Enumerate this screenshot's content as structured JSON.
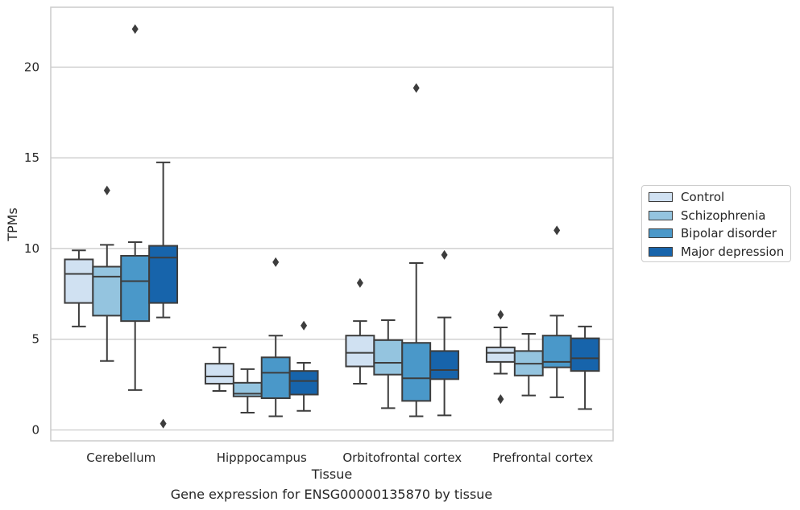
{
  "caption": "Gene expression for ENSG00000135870 by tissue",
  "chart_data": {
    "type": "box",
    "xlabel": "Tissue",
    "ylabel": "TPMs",
    "ylim": [
      -0.6,
      23.3
    ],
    "yticks": [
      0,
      5,
      10,
      15,
      20
    ],
    "grid": "horizontal",
    "legend_position": "right-center",
    "categories": [
      "Cerebellum",
      "Hipppocampus",
      "Orbitofrontal cortex",
      "Prefrontal cortex"
    ],
    "series": [
      {
        "name": "Control",
        "color": "#d0e1f2",
        "boxes": [
          {
            "whislo": 5.7,
            "q1": 7.0,
            "med": 8.6,
            "q3": 9.4,
            "whishi": 9.9,
            "fliers": []
          },
          {
            "whislo": 2.15,
            "q1": 2.55,
            "med": 2.95,
            "q3": 3.65,
            "whishi": 4.55,
            "fliers": []
          },
          {
            "whislo": 2.55,
            "q1": 3.5,
            "med": 4.25,
            "q3": 5.2,
            "whishi": 6.0,
            "fliers": [
              8.1
            ]
          },
          {
            "whislo": 3.1,
            "q1": 3.75,
            "med": 4.25,
            "q3": 4.55,
            "whishi": 5.65,
            "fliers": [
              6.35,
              1.7
            ]
          }
        ]
      },
      {
        "name": "Schizophrenia",
        "color": "#94c4df",
        "boxes": [
          {
            "whislo": 3.8,
            "q1": 6.3,
            "med": 8.45,
            "q3": 9.0,
            "whishi": 10.2,
            "fliers": [
              13.2
            ]
          },
          {
            "whislo": 0.95,
            "q1": 1.85,
            "med": 2.0,
            "q3": 2.6,
            "whishi": 3.35,
            "fliers": []
          },
          {
            "whislo": 1.2,
            "q1": 3.05,
            "med": 3.7,
            "q3": 4.95,
            "whishi": 6.05,
            "fliers": []
          },
          {
            "whislo": 1.9,
            "q1": 3.0,
            "med": 3.65,
            "q3": 4.35,
            "whishi": 5.3,
            "fliers": []
          }
        ]
      },
      {
        "name": "Bipolar disorder",
        "color": "#4a98c9",
        "boxes": [
          {
            "whislo": 2.2,
            "q1": 6.0,
            "med": 8.2,
            "q3": 9.6,
            "whishi": 10.35,
            "fliers": [
              22.1
            ]
          },
          {
            "whislo": 0.75,
            "q1": 1.75,
            "med": 3.15,
            "q3": 4.0,
            "whishi": 5.2,
            "fliers": [
              9.25
            ]
          },
          {
            "whislo": 0.75,
            "q1": 1.6,
            "med": 2.85,
            "q3": 4.8,
            "whishi": 9.2,
            "fliers": [
              18.85
            ]
          },
          {
            "whislo": 1.8,
            "q1": 3.45,
            "med": 3.75,
            "q3": 5.2,
            "whishi": 6.3,
            "fliers": [
              11.0
            ]
          }
        ]
      },
      {
        "name": "Major depression",
        "color": "#1764ab",
        "boxes": [
          {
            "whislo": 6.2,
            "q1": 7.0,
            "med": 9.5,
            "q3": 10.15,
            "whishi": 14.75,
            "fliers": [
              0.35
            ]
          },
          {
            "whislo": 1.05,
            "q1": 1.95,
            "med": 2.7,
            "q3": 3.25,
            "whishi": 3.7,
            "fliers": [
              5.75
            ]
          },
          {
            "whislo": 0.8,
            "q1": 2.8,
            "med": 3.3,
            "q3": 4.35,
            "whishi": 6.2,
            "fliers": [
              9.65
            ]
          },
          {
            "whislo": 1.15,
            "q1": 3.25,
            "med": 3.95,
            "q3": 5.05,
            "whishi": 5.7,
            "fliers": []
          }
        ]
      }
    ]
  }
}
